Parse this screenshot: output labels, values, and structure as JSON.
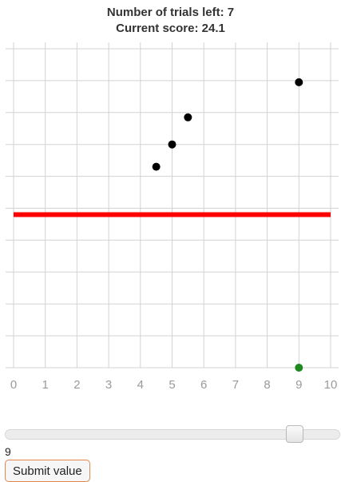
{
  "header": {
    "trials_left": "Number of trials left: 7",
    "current_score": "Current score: 24.1"
  },
  "chart_data": {
    "type": "scatter",
    "title": "",
    "xlabel": "",
    "ylabel": "",
    "xlim": [
      0,
      10
    ],
    "ylim": [
      0,
      10
    ],
    "x_ticks": [
      "0",
      "1",
      "2",
      "3",
      "4",
      "5",
      "6",
      "7",
      "8",
      "9",
      "10"
    ],
    "grid": true,
    "points": [
      {
        "x": 4.5,
        "y": 6.3,
        "color": "#000000"
      },
      {
        "x": 5.0,
        "y": 7.0,
        "color": "#000000"
      },
      {
        "x": 5.5,
        "y": 7.85,
        "color": "#000000"
      },
      {
        "x": 9.0,
        "y": 8.95,
        "color": "#000000"
      },
      {
        "x": 9.0,
        "y": 0.0,
        "color": "#1e8a1e"
      }
    ],
    "threshold_line": {
      "y": 4.8,
      "x_from": 0,
      "x_to": 10,
      "color": "#ff0000"
    }
  },
  "slider": {
    "min": 0,
    "max": 10,
    "value": 9,
    "value_label": "9"
  },
  "submit": {
    "label": "Submit value"
  }
}
